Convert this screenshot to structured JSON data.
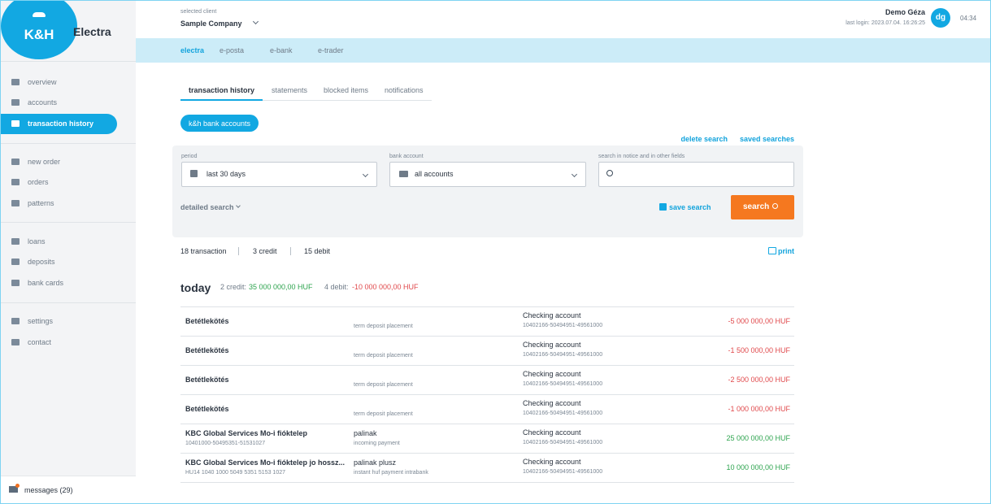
{
  "app": {
    "logo": "K&H",
    "name": "Electra"
  },
  "header": {
    "client_label": "selected client",
    "client": "Sample Company",
    "user": "Demo Géza",
    "last_login": "last login: 2023.07.04. 16:26:25",
    "initials": "dg",
    "timer": "04:34"
  },
  "nav": [
    "electra",
    "e-posta",
    "e-bank",
    "e-trader"
  ],
  "sidebar": {
    "groups": [
      [
        "overview",
        "accounts",
        "transaction history"
      ],
      [
        "new order",
        "orders",
        "patterns"
      ],
      [
        "loans",
        "deposits",
        "bank cards"
      ],
      [
        "settings",
        "contact"
      ]
    ],
    "messages": "messages (29)"
  },
  "tabs": [
    "transaction history",
    "statements",
    "blocked items",
    "notifications"
  ],
  "accounts_button": "k&h bank accounts",
  "search_links": [
    "delete search",
    "saved searches"
  ],
  "filters": {
    "period_label": "period",
    "period": "last 30 days",
    "account_label": "bank account",
    "account": "all accounts",
    "text_label": "search in notice and in other fields",
    "detailed": "detailed search",
    "save": "save search",
    "search": "search"
  },
  "summary": [
    "18 transaction",
    "3 credit",
    "15 debit"
  ],
  "print": "print",
  "day": {
    "title": "today",
    "credit_label": "2 credit:",
    "credit": "35 000 000,00 HUF",
    "debit_label": "4 debit:",
    "debit": "-10 000 000,00 HUF"
  },
  "transactions": [
    {
      "partner": "Betétlekötés",
      "type": "term deposit placement",
      "account_name": "Checking account",
      "account": "10402166-50494951-49561000",
      "amount": "-5 000 000,00 HUF"
    },
    {
      "partner": "Betétlekötés",
      "type": "term deposit placement",
      "account_name": "Checking account",
      "account": "10402166-50494951-49561000",
      "amount": "-1 500 000,00 HUF"
    },
    {
      "partner": "Betétlekötés",
      "type": "term deposit placement",
      "account_name": "Checking account",
      "account": "10402166-50494951-49561000",
      "amount": "-2 500 000,00 HUF"
    },
    {
      "partner": "Betétlekötés",
      "type": "term deposit placement",
      "account_name": "Checking account",
      "account": "10402166-50494951-49561000",
      "amount": "-1 000 000,00 HUF"
    },
    {
      "partner": "KBC Global Services Mo-i fióktelep",
      "partner_account": "10401000-50495351-51531027",
      "notice": "palinak",
      "type": "incoming payment",
      "account_name": "Checking account",
      "account": "10402166-50494951-49561000",
      "amount": "25 000 000,00 HUF"
    },
    {
      "partner": "KBC Global Services Mo-i fióktelep jo hossz...",
      "partner_account": "HU14 1040 1000 5049 5351 5153 1027",
      "notice": "palinak plusz",
      "type": "instant huf payment intrabank",
      "account_name": "Checking account",
      "account": "10402166-50494951-49561000",
      "amount": "10 000 000,00 HUF"
    }
  ]
}
